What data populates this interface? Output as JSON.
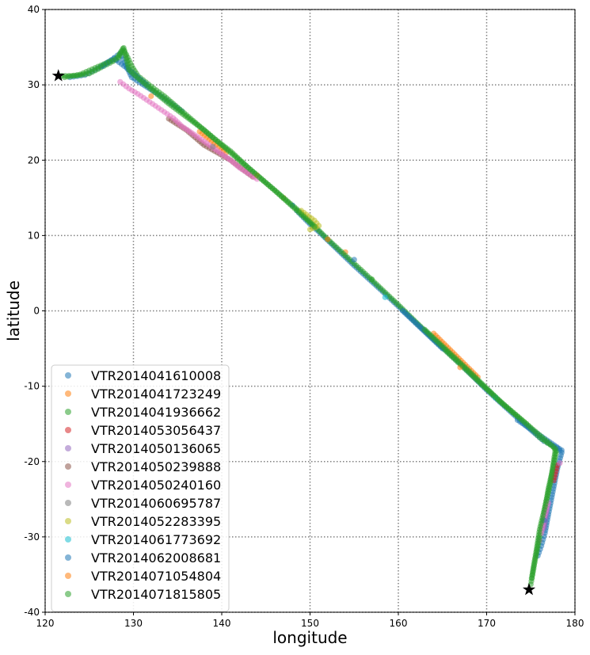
{
  "chart_data": {
    "type": "scatter",
    "title": "",
    "xlabel": "longitude",
    "ylabel": "latitude",
    "xlim": [
      120,
      180
    ],
    "ylim": [
      -40,
      40
    ],
    "xticks": [
      120,
      130,
      140,
      150,
      160,
      170,
      180
    ],
    "yticks": [
      -40,
      -30,
      -20,
      -10,
      0,
      10,
      20,
      30,
      40
    ],
    "grid": true,
    "grid_style": "dotted",
    "legend_position": "lower-left",
    "series": [
      {
        "name": "VTR2014041610008",
        "color": "#1f77b4",
        "points": [
          [
            122.8,
            31.0
          ],
          [
            124.5,
            31.3
          ],
          [
            126.0,
            32.2
          ],
          [
            127.5,
            33.3
          ],
          [
            128.5,
            34.2
          ],
          [
            129.0,
            33.0
          ],
          [
            129.8,
            31.0
          ],
          [
            131.0,
            30.1
          ],
          [
            133.0,
            28.6
          ],
          [
            135.5,
            26.5
          ],
          [
            148.5,
            13.3
          ],
          [
            150.0,
            11.5
          ],
          [
            151.0,
            10.5
          ],
          [
            155.0,
            6.0
          ],
          [
            158.0,
            2.8
          ],
          [
            161.0,
            -0.5
          ],
          [
            164.0,
            -3.8
          ],
          [
            167.0,
            -7.0
          ],
          [
            170.0,
            -10.5
          ],
          [
            173.0,
            -13.7
          ],
          [
            175.0,
            -15.8
          ],
          [
            176.5,
            -17.3
          ],
          [
            178.0,
            -18.2
          ],
          [
            178.5,
            -18.8
          ],
          [
            178.0,
            -21.0
          ],
          [
            177.5,
            -24.0
          ],
          [
            177.0,
            -27.0
          ],
          [
            176.6,
            -29.5
          ],
          [
            176.2,
            -31.2
          ],
          [
            175.8,
            -32.5
          ]
        ]
      },
      {
        "name": "VTR2014041723249",
        "color": "#ff7f0e",
        "points": [
          [
            137.5,
            23.8
          ],
          [
            140.5,
            21.0
          ],
          [
            147.0,
            15.0
          ],
          [
            154.0,
            7.8
          ],
          [
            164.0,
            -3.0
          ],
          [
            169.0,
            -8.8
          ]
        ]
      },
      {
        "name": "VTR2014041936662",
        "color": "#2ca02c",
        "points": [
          [
            121.9,
            31.2
          ],
          [
            123.5,
            31.2
          ],
          [
            125.0,
            31.5
          ],
          [
            128.0,
            33.3
          ],
          [
            128.8,
            34.8
          ],
          [
            129.2,
            34.0
          ],
          [
            129.8,
            32.5
          ],
          [
            130.5,
            31.2
          ],
          [
            132.0,
            29.8
          ],
          [
            133.5,
            28.5
          ],
          [
            135.0,
            27.0
          ],
          [
            137.0,
            25.0
          ],
          [
            139.0,
            23.0
          ],
          [
            141.0,
            21.2
          ],
          [
            143.0,
            19.0
          ],
          [
            145.0,
            17.0
          ],
          [
            147.0,
            15.0
          ],
          [
            149.0,
            13.0
          ],
          [
            152.0,
            9.5
          ],
          [
            156.0,
            5.2
          ],
          [
            160.0,
            0.8
          ],
          [
            162.0,
            -1.5
          ],
          [
            166.0,
            -6.0
          ],
          [
            169.0,
            -9.3
          ],
          [
            172.0,
            -12.5
          ],
          [
            174.5,
            -15.0
          ],
          [
            176.0,
            -16.8
          ],
          [
            177.5,
            -18.0
          ],
          [
            177.9,
            -18.6
          ],
          [
            177.5,
            -21.0
          ],
          [
            177.0,
            -23.5
          ],
          [
            176.5,
            -27.0
          ],
          [
            176.0,
            -30.0
          ],
          [
            175.5,
            -33.0
          ],
          [
            175.2,
            -35.0
          ],
          [
            175.0,
            -36.3
          ]
        ]
      },
      {
        "name": "VTR2014053056437",
        "color": "#d62728",
        "points": [
          [
            178.0,
            -20.5
          ],
          [
            177.6,
            -22.5
          ]
        ]
      },
      {
        "name": "VTR2014050136065",
        "color": "#9467bd",
        "points": [
          [
            176.8,
            -26.5
          ],
          [
            176.5,
            -28.8
          ]
        ]
      },
      {
        "name": "VTR2014050239888",
        "color": "#8c564b",
        "points": [
          [
            134.0,
            25.5
          ],
          [
            136.0,
            24.0
          ],
          [
            138.0,
            22.0
          ],
          [
            141.0,
            20.0
          ],
          [
            143.5,
            17.8
          ]
        ]
      },
      {
        "name": "VTR2014050240160",
        "color": "#e377c2",
        "points": [
          [
            128.5,
            30.4
          ],
          [
            129.5,
            29.5
          ],
          [
            130.5,
            28.8
          ],
          [
            131.5,
            28.0
          ],
          [
            132.5,
            27.2
          ],
          [
            133.5,
            26.4
          ],
          [
            134.5,
            25.6
          ],
          [
            135.5,
            24.5
          ],
          [
            138.0,
            22.5
          ],
          [
            141.0,
            20.0
          ],
          [
            142.0,
            19.0
          ],
          [
            144.0,
            17.5
          ],
          [
            177.0,
            -25.5
          ],
          [
            176.5,
            -27.5
          ],
          [
            176.2,
            -29.5
          ],
          [
            178.3,
            -20.2
          ]
        ]
      },
      {
        "name": "VTR2014060695787",
        "color": "#7f7f7f",
        "points": [
          [
            139.0,
            21.8
          ],
          [
            176.0,
            -30.5
          ]
        ]
      },
      {
        "name": "VTR2014052283395",
        "color": "#bcbd22",
        "points": [
          [
            149.0,
            13.3
          ],
          [
            150.5,
            12.0
          ],
          [
            151.0,
            11.3
          ],
          [
            150.0,
            10.8
          ]
        ]
      },
      {
        "name": "VTR2014061773692",
        "color": "#17becf",
        "points": [
          [
            158.5,
            1.8
          ],
          [
            171.0,
            -11.5
          ]
        ]
      },
      {
        "name": "VTR2014062008681",
        "color": "#1f77b4",
        "points": [
          [
            126.5,
            32.5
          ],
          [
            127.8,
            33.5
          ],
          [
            129.5,
            32.0
          ],
          [
            131.5,
            30.0
          ],
          [
            148.0,
            14.0
          ],
          [
            155.0,
            6.8
          ],
          [
            160.5,
            0.0
          ],
          [
            165.0,
            -5.0
          ],
          [
            173.5,
            -14.5
          ],
          [
            178.5,
            -18.5
          ],
          [
            176.5,
            -27.8
          ]
        ]
      },
      {
        "name": "VTR2014071054804",
        "color": "#ff7f0e",
        "points": [
          [
            132.0,
            28.5
          ],
          [
            144.0,
            18.0
          ],
          [
            152.0,
            9.5
          ],
          [
            167.0,
            -7.5
          ]
        ]
      },
      {
        "name": "VTR2014071815805",
        "color": "#2ca02c",
        "points": [
          [
            122.2,
            31.0
          ],
          [
            124.0,
            31.4
          ],
          [
            128.3,
            33.6
          ],
          [
            128.9,
            34.9
          ],
          [
            129.5,
            32.0
          ],
          [
            130.2,
            31.2
          ],
          [
            134.0,
            27.5
          ],
          [
            138.0,
            24.0
          ],
          [
            142.0,
            20.0
          ],
          [
            146.0,
            16.0
          ],
          [
            150.5,
            11.2
          ],
          [
            157.0,
            4.2
          ],
          [
            163.0,
            -2.5
          ],
          [
            168.0,
            -8.0
          ],
          [
            171.5,
            -12.0
          ],
          [
            175.5,
            -16.0
          ],
          [
            177.8,
            -18.3
          ],
          [
            177.2,
            -23.0
          ],
          [
            176.6,
            -26.0
          ],
          [
            176.0,
            -29.0
          ],
          [
            175.6,
            -32.0
          ],
          [
            175.3,
            -34.0
          ],
          [
            175.1,
            -35.5
          ]
        ]
      }
    ],
    "markers": [
      {
        "type": "star",
        "color": "#000000",
        "x": 121.5,
        "y": 31.2
      },
      {
        "type": "star",
        "color": "#000000",
        "x": 174.8,
        "y": -37.0
      }
    ]
  }
}
